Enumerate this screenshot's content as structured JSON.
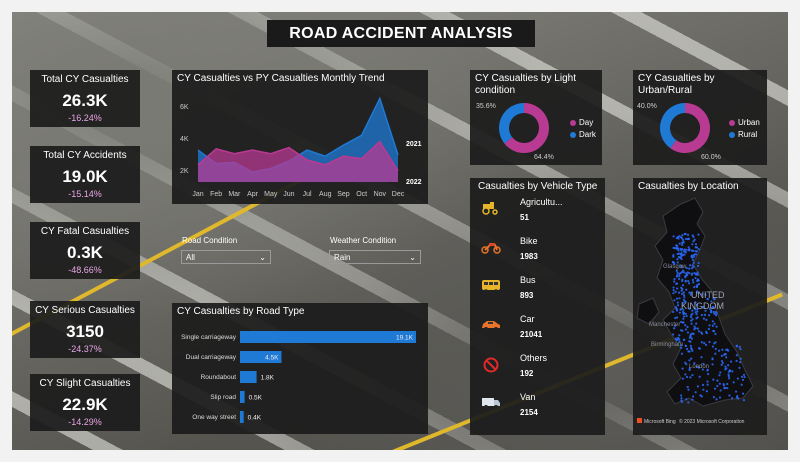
{
  "title": "ROAD ACCIDENT ANALYSIS",
  "kpis": [
    {
      "label": "Total CY Casualties",
      "value": "26.3K",
      "delta": "-16.24%"
    },
    {
      "label": "Total CY Accidents",
      "value": "19.0K",
      "delta": "-15.14%"
    },
    {
      "label": "CY Fatal Casualties",
      "value": "0.3K",
      "delta": "-48.66%"
    },
    {
      "label": "CY Serious Casualties",
      "value": "3150",
      "delta": "-24.37%"
    },
    {
      "label": "CY Slight Casualties",
      "value": "22.9K",
      "delta": "-14.29%"
    }
  ],
  "trend": {
    "title": "CY Casualties vs PY Casualties Monthly Trend",
    "months": [
      "Jan",
      "Feb",
      "Mar",
      "Apr",
      "May",
      "Jun",
      "Jul",
      "Aug",
      "Sep",
      "Oct",
      "Nov",
      "Dec"
    ],
    "y_ticks": [
      "6K",
      "4K",
      "2K"
    ],
    "legend_top": "2021",
    "legend_bottom": "2022"
  },
  "slicers": {
    "road": {
      "label": "Road Condition",
      "value": "All"
    },
    "weather": {
      "label": "Weather Condition",
      "value": "Rain"
    }
  },
  "road_type": {
    "title": "CY Casualties by Road Type",
    "rows": [
      {
        "label": "Single carriageway",
        "text": "19.1K",
        "value": 19.1
      },
      {
        "label": "Dual carriageway",
        "text": "4.5K",
        "value": 4.5
      },
      {
        "label": "Roundabout",
        "text": "1.8K",
        "value": 1.8
      },
      {
        "label": "Slip road",
        "text": "0.5K",
        "value": 0.5
      },
      {
        "label": "One way street",
        "text": "0.4K",
        "value": 0.4
      }
    ]
  },
  "light": {
    "title": "CY Casualties by Light condition",
    "pct_small": "35.6%",
    "pct_large": "64.4%",
    "legend": [
      "Day",
      "Dark"
    ],
    "shares": [
      64.4,
      35.6
    ]
  },
  "urban": {
    "title": "CY Casualties by Urban/Rural",
    "pct_small": "40.0%",
    "pct_large": "60.0%",
    "legend": [
      "Urban",
      "Rural"
    ],
    "shares": [
      60.0,
      40.0
    ]
  },
  "vehicle": {
    "title": "Casualties by Vehicle Type",
    "items": [
      {
        "name": "Agricultu...",
        "value": "51",
        "icon": "tractor-icon"
      },
      {
        "name": "Bike",
        "value": "1983",
        "icon": "motorbike-icon"
      },
      {
        "name": "Bus",
        "value": "893",
        "icon": "bus-icon"
      },
      {
        "name": "Car",
        "value": "21041",
        "icon": "car-icon"
      },
      {
        "name": "Others",
        "value": "192",
        "icon": "no-entry-icon"
      },
      {
        "name": "Van",
        "value": "2154",
        "icon": "van-icon"
      }
    ]
  },
  "map": {
    "title": "Casualties by Location",
    "country": [
      "UNITED",
      "KINGDOM"
    ],
    "cities": [
      "Manchester",
      "Birmingham",
      "London",
      "Glasgow"
    ],
    "attribution": "© 2023 Microsoft Corporation",
    "brand": "Microsoft Bing"
  },
  "colors": {
    "accent_blue": "#1f7ad6",
    "accent_pink": "#b83a93",
    "kpi_delta": "#e8a7e6"
  },
  "chart_data": [
    {
      "type": "area",
      "title": "CY Casualties vs PY Casualties Monthly Trend",
      "categories": [
        "Jan",
        "Feb",
        "Mar",
        "Apr",
        "May",
        "Jun",
        "Jul",
        "Aug",
        "Sep",
        "Oct",
        "Nov",
        "Dec"
      ],
      "ylim": [
        0,
        7000
      ],
      "series": [
        {
          "name": "2021",
          "values": [
            2600,
            1500,
            1600,
            800,
            1100,
            1700,
            2600,
            2100,
            3000,
            3800,
            6800,
            2200
          ]
        },
        {
          "name": "2022",
          "values": [
            1400,
            2700,
            2300,
            2600,
            2300,
            2800,
            1800,
            1400,
            2100,
            1900,
            3300,
            900
          ]
        }
      ]
    },
    {
      "type": "bar",
      "title": "CY Casualties by Road Type",
      "categories": [
        "Single carriageway",
        "Dual carriageway",
        "Roundabout",
        "Slip road",
        "One way street"
      ],
      "values": [
        19100,
        4500,
        1800,
        500,
        400
      ]
    },
    {
      "type": "pie",
      "title": "CY Casualties by Light condition",
      "categories": [
        "Day",
        "Dark"
      ],
      "values": [
        64.4,
        35.6
      ]
    },
    {
      "type": "pie",
      "title": "CY Casualties by Urban/Rural",
      "categories": [
        "Urban",
        "Rural"
      ],
      "values": [
        60.0,
        40.0
      ]
    }
  ]
}
